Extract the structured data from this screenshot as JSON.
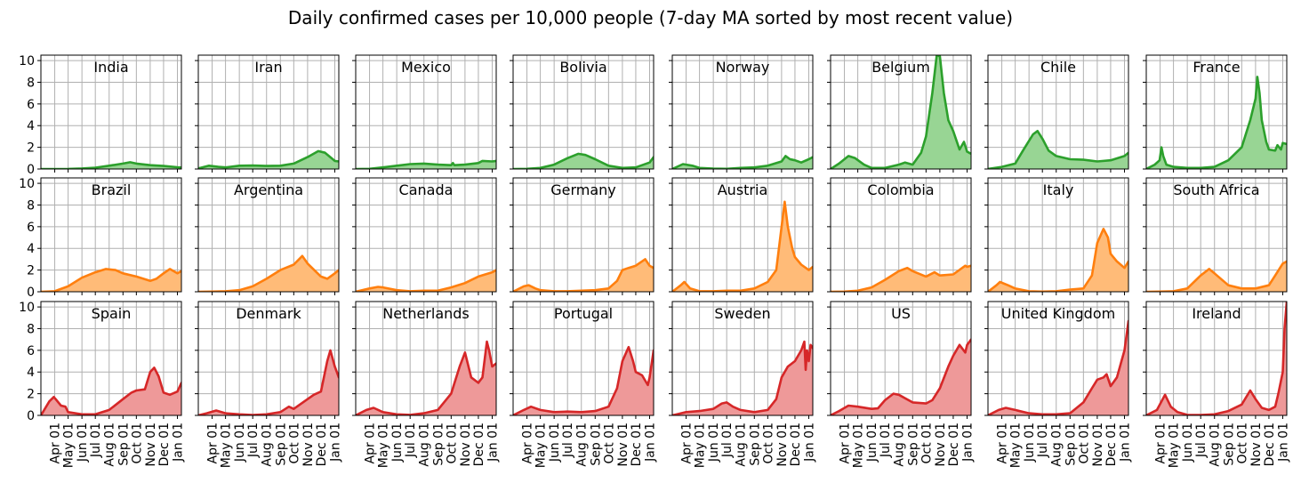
{
  "chart_data": {
    "type": "area",
    "title": "Daily confirmed cases per 10,000 people (7-day MA sorted by most recent value)",
    "xlabel": "",
    "ylabel": "",
    "ylim": [
      0,
      10.5
    ],
    "yticks": [
      0,
      2,
      4,
      6,
      8,
      10
    ],
    "xlim": [
      "2020-03-01",
      "2021-01-10"
    ],
    "xticks": [
      "Apr 01",
      "May 01",
      "Jun 01",
      "Jul 01",
      "Aug 01",
      "Sep 01",
      "Oct 01",
      "Nov 01",
      "Dec 01",
      "Jan 01"
    ],
    "xtick_dates": [
      "2020-04-01",
      "2020-05-01",
      "2020-06-01",
      "2020-07-01",
      "2020-08-01",
      "2020-09-01",
      "2020-10-01",
      "2020-11-01",
      "2020-12-01",
      "2021-01-01"
    ],
    "grid": true,
    "group_colors": {
      "green": {
        "line": "#2ca02c",
        "fill": "#98d594"
      },
      "orange": {
        "line": "#ff7f0e",
        "fill": "#ffbb78"
      },
      "red": {
        "line": "#d62728",
        "fill": "#ee9999"
      }
    },
    "panels": [
      {
        "name": "India",
        "group": "green",
        "x": [
          "2020-03-01",
          "2020-04-01",
          "2020-05-01",
          "2020-06-01",
          "2020-07-01",
          "2020-08-01",
          "2020-09-01",
          "2020-09-17",
          "2020-10-01",
          "2020-11-01",
          "2020-12-01",
          "2021-01-01",
          "2021-01-10"
        ],
        "values": [
          0,
          0,
          0.01,
          0.05,
          0.12,
          0.3,
          0.5,
          0.62,
          0.5,
          0.35,
          0.28,
          0.16,
          0.14
        ]
      },
      {
        "name": "Iran",
        "group": "green",
        "x": [
          "2020-03-01",
          "2020-03-25",
          "2020-04-15",
          "2020-05-01",
          "2020-06-01",
          "2020-07-01",
          "2020-08-01",
          "2020-09-01",
          "2020-10-01",
          "2020-11-01",
          "2020-11-25",
          "2020-12-10",
          "2021-01-01",
          "2021-01-10"
        ],
        "values": [
          0.05,
          0.3,
          0.2,
          0.15,
          0.3,
          0.32,
          0.28,
          0.3,
          0.5,
          1.1,
          1.65,
          1.5,
          0.75,
          0.7
        ]
      },
      {
        "name": "Mexico",
        "group": "green",
        "x": [
          "2020-03-01",
          "2020-04-01",
          "2020-05-01",
          "2020-06-01",
          "2020-07-01",
          "2020-08-01",
          "2020-09-01",
          "2020-10-01",
          "2020-10-05",
          "2020-10-08",
          "2020-11-01",
          "2020-12-01",
          "2020-12-10",
          "2021-01-01",
          "2021-01-10"
        ],
        "values": [
          0,
          0.02,
          0.15,
          0.3,
          0.45,
          0.5,
          0.4,
          0.35,
          0.55,
          0.35,
          0.4,
          0.55,
          0.75,
          0.7,
          0.75
        ]
      },
      {
        "name": "Bolivia",
        "group": "green",
        "x": [
          "2020-03-01",
          "2020-04-01",
          "2020-05-01",
          "2020-06-01",
          "2020-07-01",
          "2020-07-25",
          "2020-08-10",
          "2020-09-01",
          "2020-10-01",
          "2020-11-01",
          "2020-12-01",
          "2021-01-01",
          "2021-01-10"
        ],
        "values": [
          0,
          0.02,
          0.1,
          0.4,
          1,
          1.4,
          1.3,
          0.9,
          0.3,
          0.1,
          0.15,
          0.6,
          1.1
        ]
      },
      {
        "name": "Norway",
        "group": "green",
        "x": [
          "2020-03-01",
          "2020-03-25",
          "2020-04-15",
          "2020-05-01",
          "2020-06-01",
          "2020-07-01",
          "2020-08-01",
          "2020-09-01",
          "2020-10-01",
          "2020-11-01",
          "2020-11-10",
          "2020-11-20",
          "2020-12-01",
          "2020-12-15",
          "2021-01-01",
          "2021-01-10"
        ],
        "values": [
          0,
          0.45,
          0.3,
          0.1,
          0.03,
          0.02,
          0.1,
          0.15,
          0.3,
          0.7,
          1.2,
          0.9,
          0.8,
          0.6,
          0.9,
          1.1
        ]
      },
      {
        "name": "Belgium",
        "group": "green",
        "x": [
          "2020-03-01",
          "2020-03-20",
          "2020-04-10",
          "2020-04-25",
          "2020-05-15",
          "2020-06-01",
          "2020-07-01",
          "2020-08-01",
          "2020-08-15",
          "2020-09-01",
          "2020-09-20",
          "2020-10-01",
          "2020-10-15",
          "2020-10-25",
          "2020-11-01",
          "2020-11-10",
          "2020-11-20",
          "2020-12-01",
          "2020-12-15",
          "2020-12-25",
          "2021-01-01",
          "2021-01-10"
        ],
        "values": [
          0,
          0.5,
          1.2,
          1,
          0.4,
          0.1,
          0.1,
          0.4,
          0.6,
          0.4,
          1.5,
          3,
          7,
          10.5,
          10.4,
          7,
          4.5,
          3.5,
          1.8,
          2.5,
          1.6,
          1.4
        ]
      },
      {
        "name": "Chile",
        "group": "green",
        "x": [
          "2020-03-01",
          "2020-04-01",
          "2020-05-01",
          "2020-05-20",
          "2020-06-10",
          "2020-06-20",
          "2020-07-01",
          "2020-07-15",
          "2020-08-01",
          "2020-09-01",
          "2020-10-01",
          "2020-11-01",
          "2020-12-01",
          "2021-01-01",
          "2021-01-10"
        ],
        "values": [
          0,
          0.2,
          0.5,
          1.8,
          3.2,
          3.5,
          2.8,
          1.7,
          1.2,
          0.9,
          0.85,
          0.7,
          0.8,
          1.2,
          1.5
        ]
      },
      {
        "name": "France",
        "group": "green",
        "x": [
          "2020-03-01",
          "2020-03-20",
          "2020-03-31",
          "2020-04-04",
          "2020-04-08",
          "2020-04-15",
          "2020-05-01",
          "2020-06-01",
          "2020-07-01",
          "2020-08-01",
          "2020-09-01",
          "2020-10-01",
          "2020-10-20",
          "2020-11-01",
          "2020-11-05",
          "2020-11-10",
          "2020-11-15",
          "2020-11-25",
          "2020-12-01",
          "2020-12-15",
          "2020-12-20",
          "2020-12-28",
          "2021-01-01",
          "2021-01-10"
        ],
        "values": [
          0,
          0.4,
          0.8,
          2,
          1.2,
          0.4,
          0.2,
          0.1,
          0.1,
          0.2,
          0.8,
          2,
          4.5,
          6.5,
          8.5,
          7,
          4.5,
          2.5,
          1.8,
          1.7,
          2.2,
          1.8,
          2.4,
          2.3
        ]
      },
      {
        "name": "Brazil",
        "group": "orange",
        "x": [
          "2020-03-01",
          "2020-04-01",
          "2020-05-01",
          "2020-06-01",
          "2020-07-01",
          "2020-07-25",
          "2020-08-15",
          "2020-09-01",
          "2020-10-01",
          "2020-11-01",
          "2020-11-15",
          "2020-12-01",
          "2020-12-15",
          "2021-01-01",
          "2021-01-10"
        ],
        "values": [
          0,
          0.05,
          0.5,
          1.3,
          1.8,
          2.1,
          2,
          1.7,
          1.4,
          1,
          1.2,
          1.7,
          2.1,
          1.7,
          1.9
        ]
      },
      {
        "name": "Argentina",
        "group": "orange",
        "x": [
          "2020-03-01",
          "2020-04-01",
          "2020-05-01",
          "2020-06-01",
          "2020-07-01",
          "2020-08-01",
          "2020-09-01",
          "2020-10-01",
          "2020-10-20",
          "2020-11-01",
          "2020-12-01",
          "2020-12-15",
          "2021-01-01",
          "2021-01-10"
        ],
        "values": [
          0,
          0.02,
          0.05,
          0.15,
          0.5,
          1.2,
          2,
          2.5,
          3.3,
          2.6,
          1.4,
          1.2,
          1.7,
          2
        ]
      },
      {
        "name": "Canada",
        "group": "orange",
        "x": [
          "2020-03-01",
          "2020-04-01",
          "2020-04-20",
          "2020-05-01",
          "2020-06-01",
          "2020-07-01",
          "2020-08-01",
          "2020-09-01",
          "2020-10-01",
          "2020-11-01",
          "2020-12-01",
          "2021-01-01",
          "2021-01-10"
        ],
        "values": [
          0,
          0.3,
          0.45,
          0.4,
          0.15,
          0.05,
          0.1,
          0.1,
          0.4,
          0.8,
          1.4,
          1.8,
          2
        ]
      },
      {
        "name": "Germany",
        "group": "orange",
        "x": [
          "2020-03-01",
          "2020-03-25",
          "2020-04-05",
          "2020-04-20",
          "2020-05-01",
          "2020-06-01",
          "2020-07-01",
          "2020-08-01",
          "2020-09-01",
          "2020-10-01",
          "2020-10-20",
          "2020-11-01",
          "2020-11-15",
          "2020-12-01",
          "2020-12-22",
          "2021-01-01",
          "2021-01-10"
        ],
        "values": [
          0,
          0.5,
          0.6,
          0.3,
          0.15,
          0.05,
          0.05,
          0.1,
          0.15,
          0.3,
          1,
          2,
          2.2,
          2.4,
          3,
          2.4,
          2.2
        ]
      },
      {
        "name": "Austria",
        "group": "orange",
        "x": [
          "2020-03-01",
          "2020-03-20",
          "2020-03-28",
          "2020-04-10",
          "2020-05-01",
          "2020-06-01",
          "2020-07-01",
          "2020-08-01",
          "2020-09-01",
          "2020-10-01",
          "2020-10-20",
          "2020-11-01",
          "2020-11-08",
          "2020-11-15",
          "2020-11-25",
          "2020-12-01",
          "2020-12-15",
          "2021-01-01",
          "2021-01-10"
        ],
        "values": [
          0,
          0.6,
          0.9,
          0.3,
          0.05,
          0.05,
          0.1,
          0.1,
          0.3,
          0.9,
          2,
          6,
          8.3,
          6,
          4,
          3.2,
          2.5,
          2,
          2.3
        ]
      },
      {
        "name": "Colombia",
        "group": "orange",
        "x": [
          "2020-03-01",
          "2020-04-01",
          "2020-05-01",
          "2020-06-01",
          "2020-07-01",
          "2020-08-01",
          "2020-08-20",
          "2020-09-01",
          "2020-10-01",
          "2020-10-20",
          "2020-11-01",
          "2020-12-01",
          "2020-12-28",
          "2021-01-01",
          "2021-01-10"
        ],
        "values": [
          0,
          0.02,
          0.1,
          0.4,
          1.1,
          1.9,
          2.2,
          1.9,
          1.4,
          1.8,
          1.5,
          1.6,
          2.4,
          2.3,
          2.4
        ]
      },
      {
        "name": "Italy",
        "group": "orange",
        "x": [
          "2020-03-01",
          "2020-03-20",
          "2020-03-28",
          "2020-04-15",
          "2020-05-01",
          "2020-06-01",
          "2020-07-01",
          "2020-08-01",
          "2020-09-01",
          "2020-10-01",
          "2020-10-20",
          "2020-11-01",
          "2020-11-15",
          "2020-11-25",
          "2020-12-01",
          "2020-12-15",
          "2021-01-01",
          "2021-01-10"
        ],
        "values": [
          0,
          0.6,
          0.9,
          0.6,
          0.3,
          0.05,
          0.02,
          0.05,
          0.2,
          0.3,
          1.5,
          4.5,
          5.8,
          5,
          3.5,
          2.8,
          2.2,
          2.8
        ]
      },
      {
        "name": "South Africa",
        "group": "orange",
        "x": [
          "2020-03-01",
          "2020-04-01",
          "2020-05-01",
          "2020-06-01",
          "2020-07-01",
          "2020-07-20",
          "2020-08-01",
          "2020-09-01",
          "2020-10-01",
          "2020-11-01",
          "2020-12-01",
          "2020-12-15",
          "2021-01-01",
          "2021-01-10"
        ],
        "values": [
          0,
          0.02,
          0.05,
          0.3,
          1.5,
          2.1,
          1.7,
          0.6,
          0.3,
          0.3,
          0.6,
          1.5,
          2.6,
          2.8
        ]
      },
      {
        "name": "Spain",
        "group": "red",
        "x": [
          "2020-03-01",
          "2020-03-20",
          "2020-03-30",
          "2020-04-05",
          "2020-04-15",
          "2020-04-25",
          "2020-05-01",
          "2020-06-01",
          "2020-07-01",
          "2020-08-01",
          "2020-09-01",
          "2020-09-20",
          "2020-10-01",
          "2020-10-20",
          "2020-11-01",
          "2020-11-10",
          "2020-11-20",
          "2020-12-01",
          "2020-12-15",
          "2021-01-01",
          "2021-01-10"
        ],
        "values": [
          0,
          1.3,
          1.7,
          1.4,
          0.9,
          0.8,
          0.3,
          0.1,
          0.1,
          0.5,
          1.5,
          2.1,
          2.3,
          2.4,
          4,
          4.4,
          3.6,
          2.1,
          1.9,
          2.2,
          3
        ]
      },
      {
        "name": "Denmark",
        "group": "red",
        "x": [
          "2020-03-01",
          "2020-03-20",
          "2020-04-10",
          "2020-05-01",
          "2020-06-01",
          "2020-07-01",
          "2020-08-01",
          "2020-09-01",
          "2020-09-20",
          "2020-10-01",
          "2020-11-01",
          "2020-11-15",
          "2020-12-01",
          "2020-12-15",
          "2020-12-22",
          "2021-01-01",
          "2021-01-10"
        ],
        "values": [
          0,
          0.2,
          0.45,
          0.2,
          0.1,
          0.03,
          0.1,
          0.3,
          0.8,
          0.6,
          1.5,
          1.9,
          2.2,
          5,
          6,
          4.5,
          3.5
        ]
      },
      {
        "name": "Netherlands",
        "group": "red",
        "x": [
          "2020-03-01",
          "2020-03-25",
          "2020-04-10",
          "2020-05-01",
          "2020-06-01",
          "2020-07-01",
          "2020-08-01",
          "2020-09-01",
          "2020-10-01",
          "2020-10-20",
          "2020-11-01",
          "2020-11-15",
          "2020-12-01",
          "2020-12-10",
          "2020-12-20",
          "2020-12-25",
          "2021-01-01",
          "2021-01-10"
        ],
        "values": [
          0,
          0.5,
          0.7,
          0.3,
          0.1,
          0.05,
          0.2,
          0.5,
          2,
          4.5,
          5.8,
          3.5,
          3,
          3.5,
          6.8,
          6,
          4.5,
          4.8
        ]
      },
      {
        "name": "Portugal",
        "group": "red",
        "x": [
          "2020-03-01",
          "2020-03-25",
          "2020-04-10",
          "2020-05-01",
          "2020-06-01",
          "2020-07-01",
          "2020-08-01",
          "2020-09-01",
          "2020-10-01",
          "2020-10-20",
          "2020-11-01",
          "2020-11-15",
          "2020-11-25",
          "2020-12-01",
          "2020-12-15",
          "2020-12-28",
          "2021-01-01",
          "2021-01-10"
        ],
        "values": [
          0,
          0.5,
          0.8,
          0.5,
          0.3,
          0.35,
          0.3,
          0.4,
          0.8,
          2.5,
          5,
          6.3,
          5,
          4,
          3.7,
          2.8,
          3.5,
          6
        ]
      },
      {
        "name": "Sweden",
        "group": "red",
        "x": [
          "2020-03-01",
          "2020-04-01",
          "2020-05-01",
          "2020-06-01",
          "2020-06-20",
          "2020-07-01",
          "2020-07-15",
          "2020-08-01",
          "2020-09-01",
          "2020-10-01",
          "2020-10-20",
          "2020-11-01",
          "2020-11-15",
          "2020-12-01",
          "2020-12-15",
          "2020-12-22",
          "2020-12-25",
          "2020-12-28",
          "2021-01-01",
          "2021-01-05",
          "2021-01-10"
        ],
        "values": [
          0,
          0.3,
          0.4,
          0.6,
          1.1,
          1.2,
          0.8,
          0.5,
          0.3,
          0.5,
          1.5,
          3.5,
          4.5,
          5,
          6,
          6.8,
          4.2,
          6,
          5,
          6.5,
          6.2
        ]
      },
      {
        "name": "US",
        "group": "red",
        "x": [
          "2020-03-01",
          "2020-03-20",
          "2020-04-10",
          "2020-05-01",
          "2020-06-01",
          "2020-06-15",
          "2020-07-01",
          "2020-07-20",
          "2020-08-01",
          "2020-09-01",
          "2020-10-01",
          "2020-10-15",
          "2020-11-01",
          "2020-11-20",
          "2020-12-01",
          "2020-12-15",
          "2020-12-28",
          "2021-01-01",
          "2021-01-10"
        ],
        "values": [
          0,
          0.4,
          0.9,
          0.8,
          0.6,
          0.65,
          1.4,
          2,
          1.9,
          1.2,
          1.1,
          1.4,
          2.5,
          4.5,
          5.5,
          6.5,
          5.8,
          6.5,
          7
        ]
      },
      {
        "name": "United Kingdom",
        "group": "red",
        "x": [
          "2020-03-01",
          "2020-03-25",
          "2020-04-10",
          "2020-05-01",
          "2020-06-01",
          "2020-07-01",
          "2020-08-01",
          "2020-09-01",
          "2020-10-01",
          "2020-10-20",
          "2020-11-01",
          "2020-11-15",
          "2020-11-22",
          "2020-12-01",
          "2020-12-15",
          "2021-01-01",
          "2021-01-10"
        ],
        "values": [
          0,
          0.5,
          0.7,
          0.5,
          0.2,
          0.1,
          0.1,
          0.2,
          1.2,
          2.5,
          3.3,
          3.5,
          3.8,
          2.7,
          3.5,
          6,
          8.7
        ]
      },
      {
        "name": "Ireland",
        "group": "red",
        "x": [
          "2020-03-01",
          "2020-03-25",
          "2020-04-12",
          "2020-04-25",
          "2020-05-10",
          "2020-06-01",
          "2020-07-01",
          "2020-08-01",
          "2020-09-01",
          "2020-10-01",
          "2020-10-20",
          "2020-11-01",
          "2020-11-15",
          "2020-12-01",
          "2020-12-15",
          "2020-12-22",
          "2021-01-01",
          "2021-01-05",
          "2021-01-10"
        ],
        "values": [
          0,
          0.5,
          1.9,
          0.8,
          0.3,
          0.05,
          0.03,
          0.1,
          0.4,
          1,
          2.3,
          1.5,
          0.7,
          0.5,
          0.8,
          2,
          4,
          8,
          10.5
        ]
      }
    ]
  }
}
